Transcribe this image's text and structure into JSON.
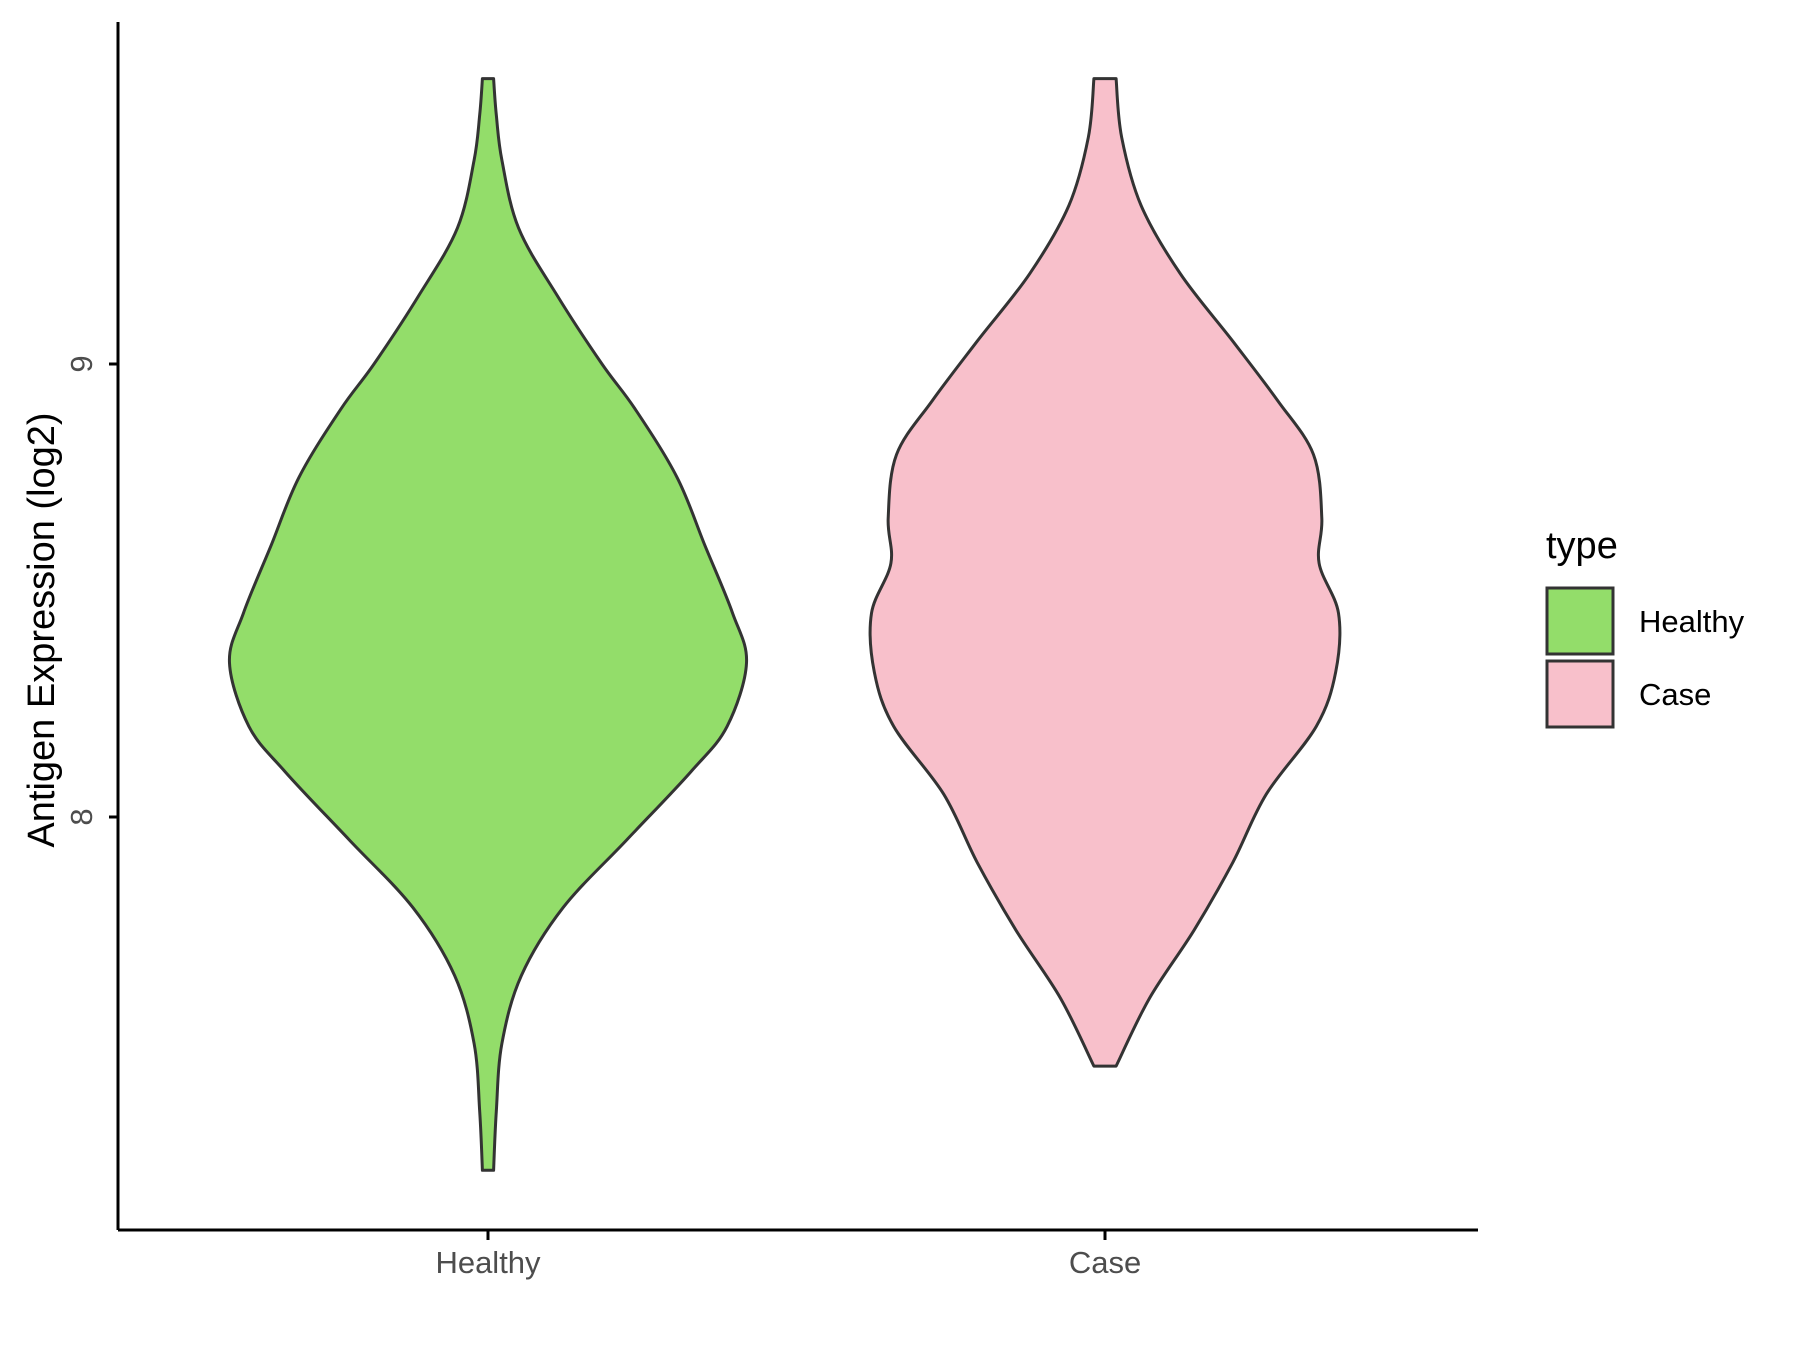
{
  "chart_data": {
    "type": "violin",
    "categories": [
      "Healthy",
      "Case"
    ],
    "ylabel": "Antigen Expression (log2)",
    "xlabel": "",
    "yticks": [
      8,
      9
    ],
    "ylim": [
      7.1,
      9.75
    ],
    "legend": {
      "title": "type",
      "position": "right",
      "entries": [
        {
          "label": "Healthy",
          "color": "#93DD6A"
        },
        {
          "label": "Case",
          "color": "#F8C0CB"
        }
      ]
    },
    "series": [
      {
        "category": "Healthy",
        "color": "#93DD6A",
        "y_min": 7.22,
        "y_max": 9.63,
        "density_profile": [
          [
            7.22,
            0.02
          ],
          [
            7.35,
            0.03
          ],
          [
            7.5,
            0.05
          ],
          [
            7.65,
            0.12
          ],
          [
            7.8,
            0.27
          ],
          [
            7.95,
            0.5
          ],
          [
            8.1,
            0.73
          ],
          [
            8.2,
            0.86
          ],
          [
            8.34,
            0.93
          ],
          [
            8.45,
            0.88
          ],
          [
            8.6,
            0.78
          ],
          [
            8.75,
            0.68
          ],
          [
            8.9,
            0.53
          ],
          [
            9.0,
            0.41
          ],
          [
            9.15,
            0.25
          ],
          [
            9.3,
            0.11
          ],
          [
            9.45,
            0.05
          ],
          [
            9.55,
            0.03
          ],
          [
            9.63,
            0.02
          ]
        ]
      },
      {
        "category": "Case",
        "color": "#F8C0CB",
        "y_min": 7.45,
        "y_max": 9.63,
        "density_profile": [
          [
            7.45,
            0.04
          ],
          [
            7.6,
            0.16
          ],
          [
            7.75,
            0.32
          ],
          [
            7.9,
            0.46
          ],
          [
            8.05,
            0.58
          ],
          [
            8.2,
            0.76
          ],
          [
            8.32,
            0.83
          ],
          [
            8.45,
            0.84
          ],
          [
            8.56,
            0.77
          ],
          [
            8.66,
            0.78
          ],
          [
            8.8,
            0.75
          ],
          [
            8.92,
            0.62
          ],
          [
            9.05,
            0.46
          ],
          [
            9.2,
            0.27
          ],
          [
            9.35,
            0.13
          ],
          [
            9.5,
            0.06
          ],
          [
            9.63,
            0.04
          ]
        ]
      }
    ]
  }
}
